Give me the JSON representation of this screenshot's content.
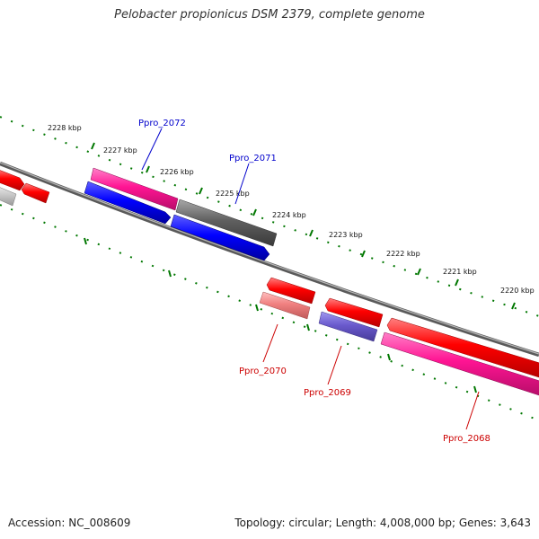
{
  "title": "Pelobacter propionicus DSM 2379, complete genome",
  "footer": {
    "accession": "Accession: NC_008609",
    "topology": "Topology: circular; Length: 4,008,000 bp; Genes: 3,643"
  },
  "scale_ticks": [
    "2228 kbp",
    "2227 kbp",
    "2226 kbp",
    "2225 kbp",
    "2224 kbp",
    "2223 kbp",
    "2222 kbp",
    "2221 kbp",
    "2220 kbp"
  ],
  "gene_labels": {
    "ppro_2072": "Ppro_2072",
    "ppro_2071": "Ppro_2071",
    "ppro_2070": "Ppro_2070",
    "ppro_2069": "Ppro_2069",
    "ppro_2068": "Ppro_2068"
  },
  "colors": {
    "forward_label": "#0000cc",
    "reverse_label": "#cc0000",
    "red": "#ff0000",
    "pink": "#ff1493",
    "blue": "#0000ff",
    "gray": "#606060",
    "light_red": "#f08080",
    "slate_blue": "#6a5acd",
    "scale": "#007700",
    "backbone": "#808080"
  }
}
